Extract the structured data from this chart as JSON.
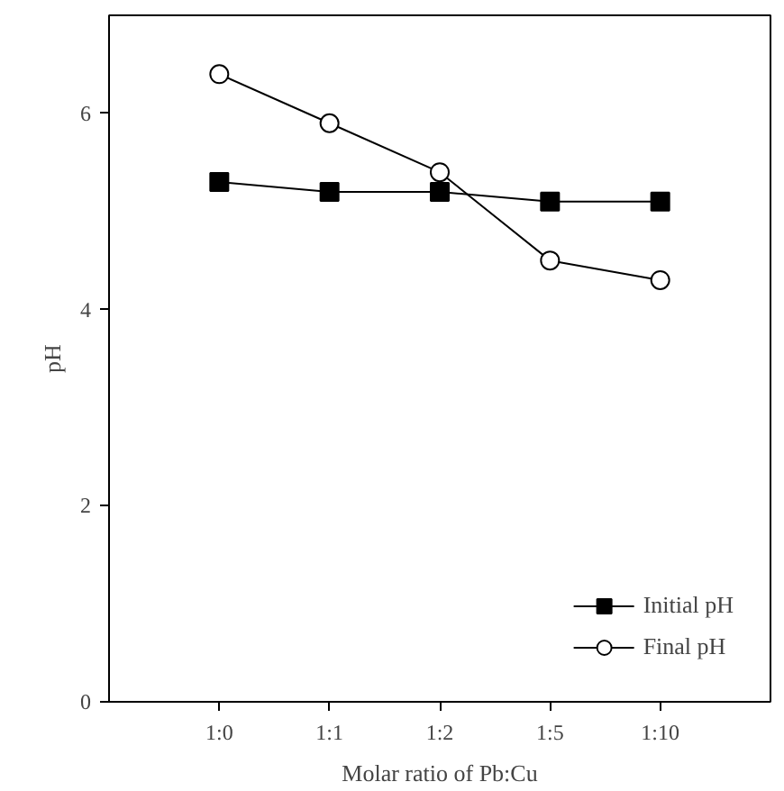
{
  "chart_data": {
    "type": "line",
    "xlabel": "Molar ratio of Pb:Cu",
    "ylabel": "pH",
    "categories": [
      "1:0",
      "1:1",
      "1:2",
      "1:5",
      "1:10"
    ],
    "series": [
      {
        "name": "Initial pH",
        "color": "#000000",
        "marker": "square",
        "values": [
          5.3,
          5.2,
          5.2,
          5.1,
          5.1
        ]
      },
      {
        "name": "Final pH",
        "color": "#000000",
        "marker": "circle",
        "values": [
          6.4,
          5.9,
          5.4,
          4.5,
          4.3
        ]
      }
    ],
    "ylim": [
      0,
      7
    ],
    "yticks": [
      0,
      2,
      4,
      6
    ],
    "grid": false,
    "legend": "bottom right",
    "line_style": "solid"
  }
}
